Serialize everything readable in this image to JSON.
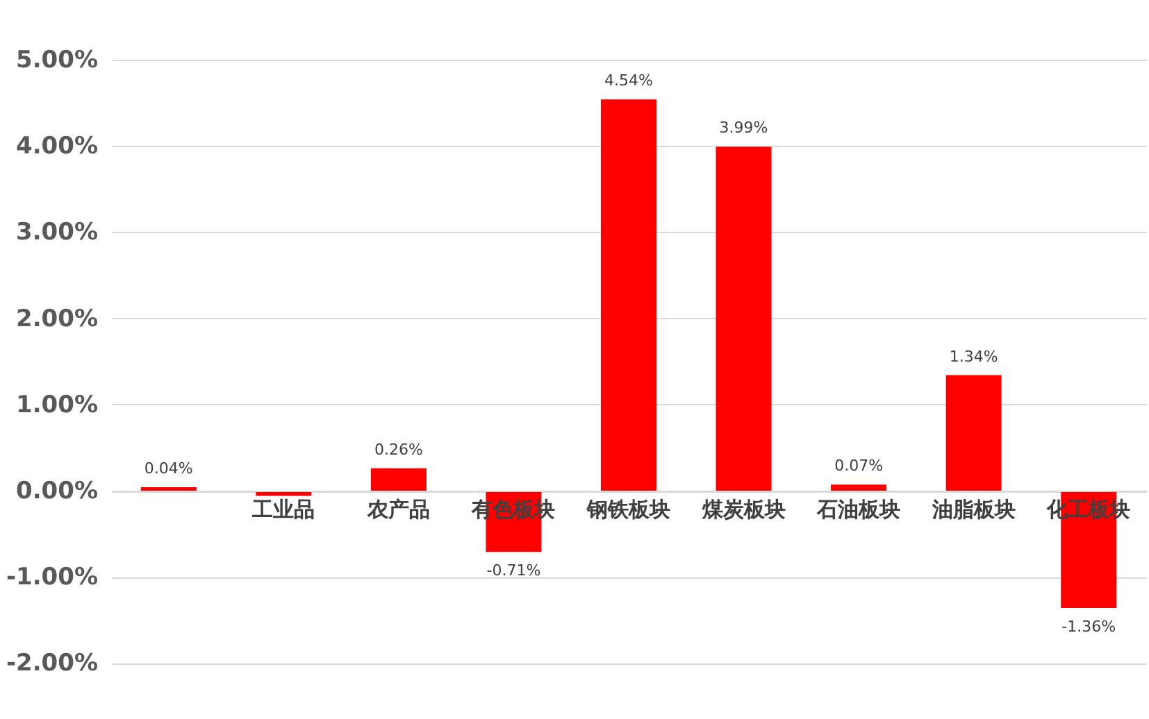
{
  "chart_data": {
    "type": "bar",
    "categories": [
      null,
      "工业品",
      "农产品",
      "有色板块",
      "钢铁板块",
      "煤炭板块",
      "石油板块",
      "油脂板块",
      "化工板块"
    ],
    "values": [
      0.04,
      -0.06,
      0.26,
      -0.71,
      4.54,
      3.99,
      0.07,
      1.34,
      -1.36
    ],
    "value_labels": [
      "0.04%",
      null,
      "0.26%",
      "-0.71%",
      "4.54%",
      "3.99%",
      "0.07%",
      "1.34%",
      "-1.36%"
    ],
    "color": "#ff0000",
    "ylim": [
      -2.6,
      5
    ],
    "yticks": [
      {
        "value": -2,
        "label": "-2.00%"
      },
      {
        "value": -1,
        "label": "-1.00%"
      },
      {
        "value": 0,
        "label": "0.00%"
      },
      {
        "value": 1,
        "label": "1.00%"
      },
      {
        "value": 2,
        "label": "2.00%"
      },
      {
        "value": 3,
        "label": "3.00%"
      },
      {
        "value": 4,
        "label": "4.00%"
      },
      {
        "value": 5,
        "label": "5.00%"
      }
    ],
    "grid": "y"
  }
}
